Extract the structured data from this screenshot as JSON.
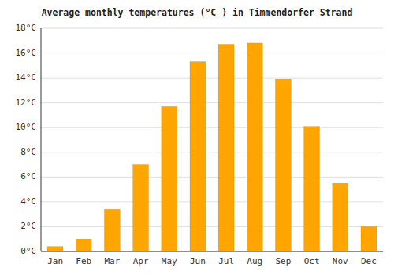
{
  "chart_data": {
    "type": "bar",
    "title": "Average monthly temperatures (°C ) in Timmendorfer Strand",
    "categories": [
      "Jan",
      "Feb",
      "Mar",
      "Apr",
      "May",
      "Jun",
      "Jul",
      "Aug",
      "Sep",
      "Oct",
      "Nov",
      "Dec"
    ],
    "values": [
      0.4,
      1.0,
      3.4,
      7.0,
      11.7,
      15.3,
      16.7,
      16.8,
      13.9,
      10.1,
      5.5,
      2.0
    ],
    "color": "#FFA500",
    "ylim": [
      0,
      18
    ],
    "yticks": [
      {
        "value": 0,
        "label": "0°C"
      },
      {
        "value": 2,
        "label": "2°C"
      },
      {
        "value": 4,
        "label": "4°C"
      },
      {
        "value": 6,
        "label": "6°C"
      },
      {
        "value": 8,
        "label": "8°C"
      },
      {
        "value": 10,
        "label": "10°C"
      },
      {
        "value": 12,
        "label": "12°C"
      },
      {
        "value": 14,
        "label": "14°C"
      },
      {
        "value": 16,
        "label": "16°C"
      },
      {
        "value": 18,
        "label": "18°C"
      }
    ],
    "grid": true
  }
}
